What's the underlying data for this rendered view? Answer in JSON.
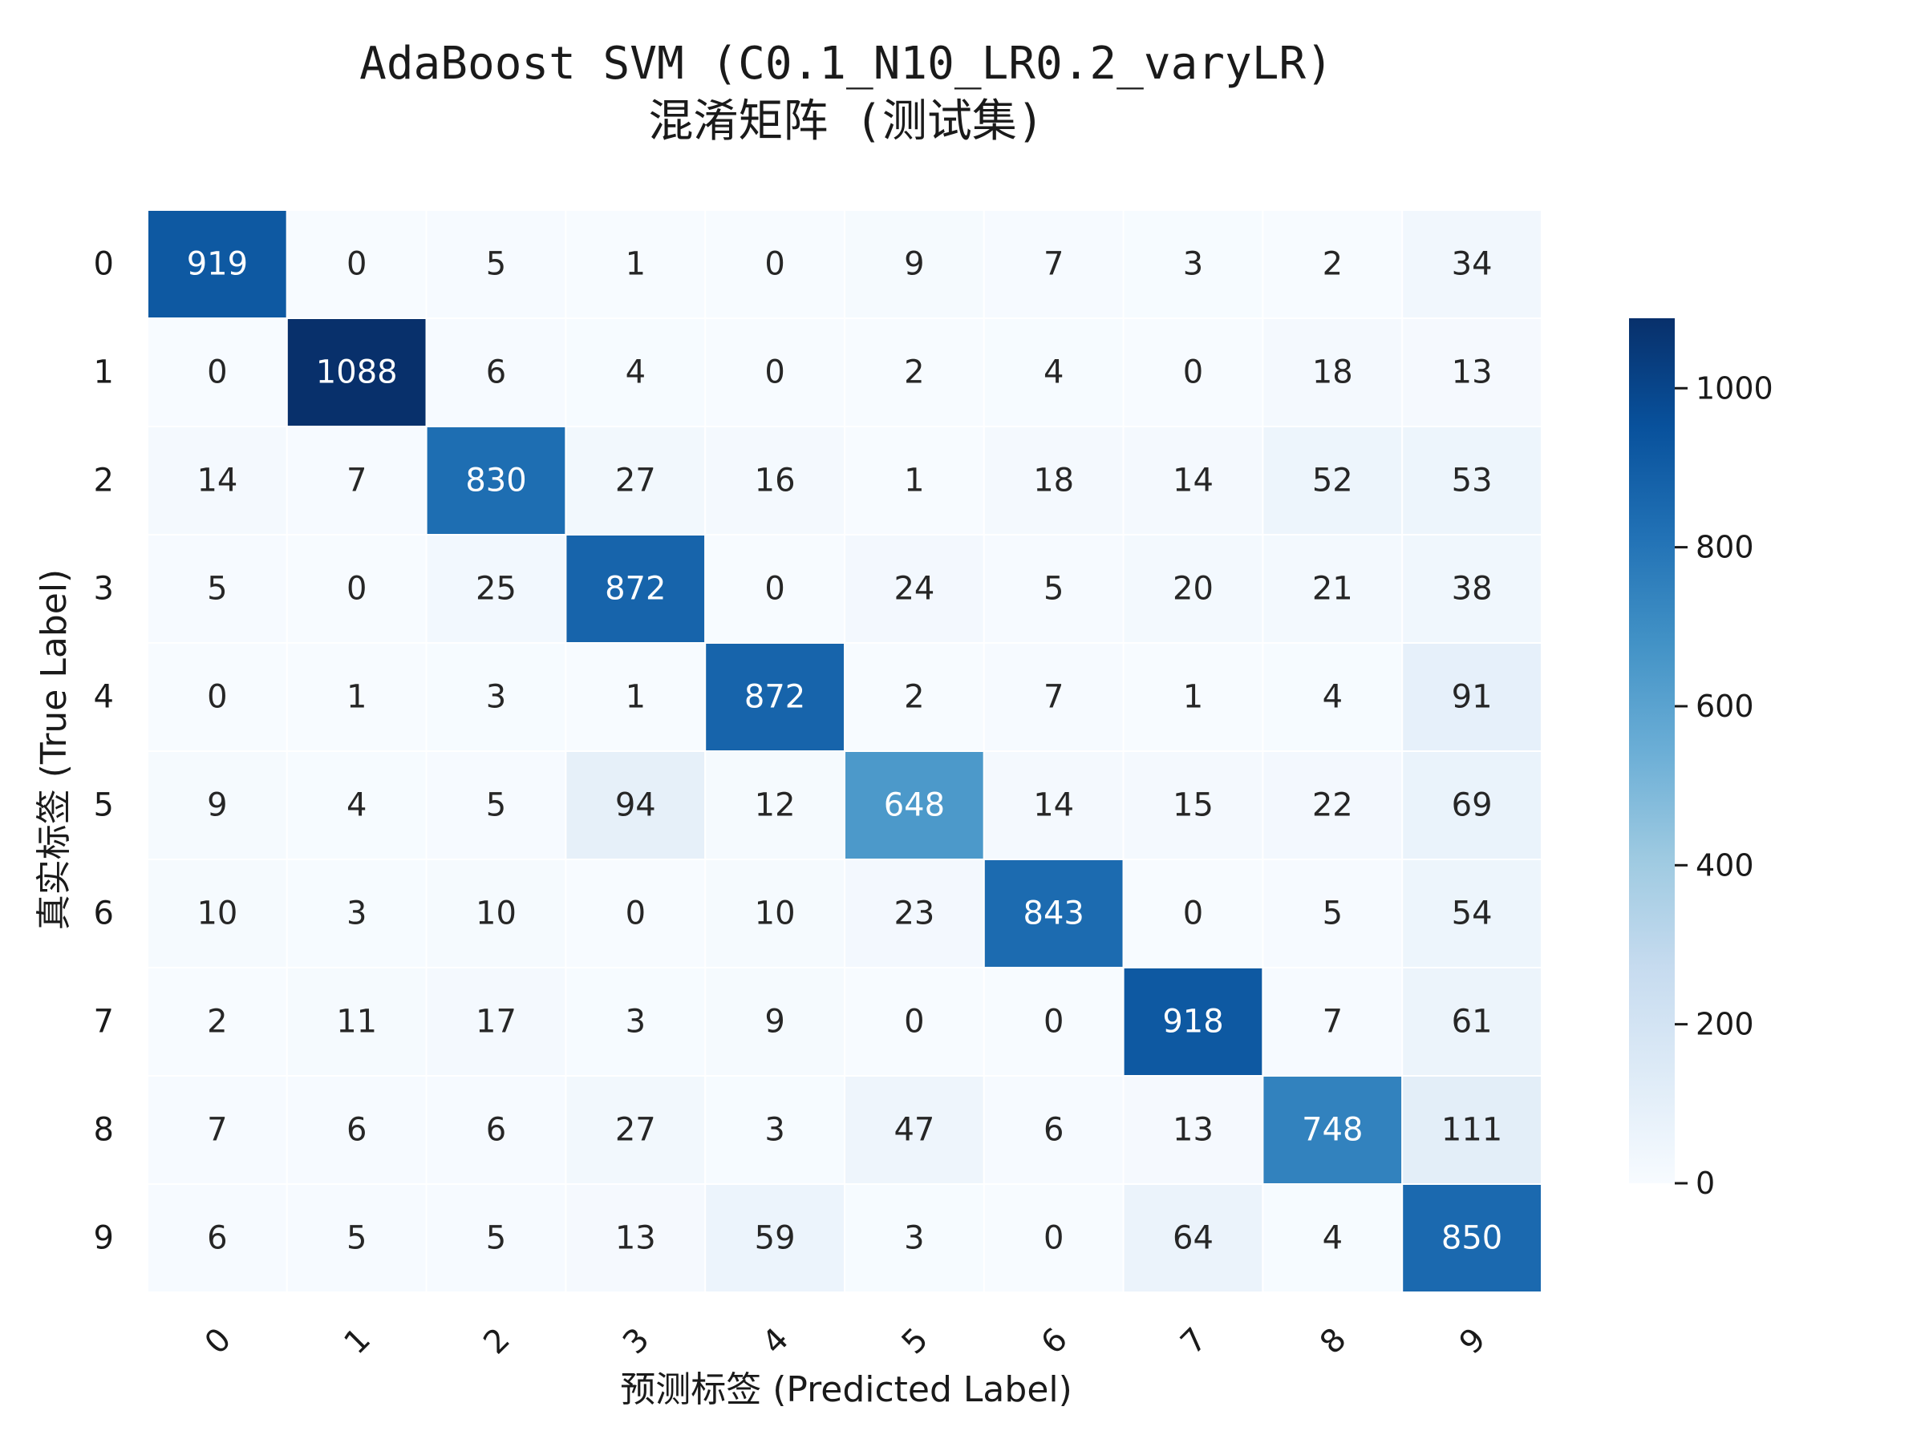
{
  "chart_data": {
    "type": "heatmap",
    "title_line1": "AdaBoost SVM (C0.1_N10_LR0.2_varyLR)",
    "title_line2": "混淆矩阵 (测试集)",
    "xlabel": "预测标签 (Predicted Label)",
    "ylabel": "真实标签 (True Label)",
    "x_categories": [
      "0",
      "1",
      "2",
      "3",
      "4",
      "5",
      "6",
      "7",
      "8",
      "9"
    ],
    "y_categories": [
      "0",
      "1",
      "2",
      "3",
      "4",
      "5",
      "6",
      "7",
      "8",
      "9"
    ],
    "values": [
      [
        919,
        0,
        5,
        1,
        0,
        9,
        7,
        3,
        2,
        34
      ],
      [
        0,
        1088,
        6,
        4,
        0,
        2,
        4,
        0,
        18,
        13
      ],
      [
        14,
        7,
        830,
        27,
        16,
        1,
        18,
        14,
        52,
        53
      ],
      [
        5,
        0,
        25,
        872,
        0,
        24,
        5,
        20,
        21,
        38
      ],
      [
        0,
        1,
        3,
        1,
        872,
        2,
        7,
        1,
        4,
        91
      ],
      [
        9,
        4,
        5,
        94,
        12,
        648,
        14,
        15,
        22,
        69
      ],
      [
        10,
        3,
        10,
        0,
        10,
        23,
        843,
        0,
        5,
        54
      ],
      [
        2,
        11,
        17,
        3,
        9,
        0,
        0,
        918,
        7,
        61
      ],
      [
        7,
        6,
        6,
        27,
        3,
        47,
        6,
        13,
        748,
        111
      ],
      [
        6,
        5,
        5,
        13,
        59,
        3,
        0,
        64,
        4,
        850
      ]
    ],
    "colormap": "Blues",
    "colorbar": {
      "min": 0,
      "max": 1088,
      "ticks": [
        0,
        200,
        400,
        600,
        800,
        1000
      ]
    },
    "colors": {
      "cell_border": "#ffffff",
      "text_dark": "#262626",
      "text_light": "#ffffff"
    }
  }
}
